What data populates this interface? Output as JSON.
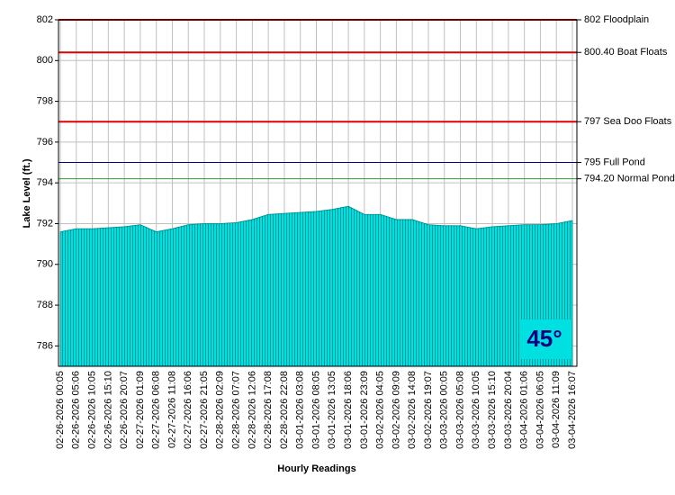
{
  "chart_data": {
    "type": "area",
    "ylabel": "Lake Level (ft.)",
    "xlabel": "Hourly Readings",
    "badge": "45°",
    "color": "#00e0e0",
    "categories": [
      "02-26-2026 00:05",
      "02-26-2026 05:06",
      "02-26-2026 10:05",
      "02-26-2026 15:10",
      "02-26-2026 20:07",
      "02-27-2026 01:09",
      "02-27-2026 06:08",
      "02-27-2026 11:08",
      "02-27-2026 16:06",
      "02-27-2026 21:05",
      "02-28-2026 02:09",
      "02-28-2026 07:07",
      "02-28-2026 12:06",
      "02-28-2026 17:08",
      "02-28-2026 22:08",
      "03-01-2026 03:08",
      "03-01-2026 08:05",
      "03-01-2026 13:05",
      "03-01-2026 18:06",
      "03-01-2026 23:09",
      "03-02-2026 04:05",
      "03-02-2026 09:09",
      "03-02-2026 14:08",
      "03-02-2026 19:07",
      "03-03-2026 00:05",
      "03-03-2026 05:08",
      "03-03-2026 10:05",
      "03-03-2026 15:10",
      "03-03-2026 20:04",
      "03-04-2026 01:06",
      "03-04-2026 06:05",
      "03-04-2026 11:09",
      "03-04-2026 16:07"
    ],
    "values": [
      791.6,
      791.75,
      791.75,
      791.8,
      791.85,
      791.95,
      791.6,
      791.75,
      791.95,
      792.0,
      792.0,
      792.05,
      792.2,
      792.45,
      792.5,
      792.55,
      792.6,
      792.7,
      792.85,
      792.45,
      792.45,
      792.2,
      792.2,
      791.95,
      791.9,
      791.9,
      791.75,
      791.85,
      791.9,
      791.95,
      791.95,
      792.0,
      792.15
    ],
    "ylim": [
      785,
      802
    ],
    "yticks": [
      786,
      788,
      790,
      792,
      794,
      796,
      798,
      800,
      802
    ],
    "grid": true,
    "reference_lines": [
      {
        "value": 802,
        "label": "802 Floodplain",
        "color": "#e00000"
      },
      {
        "value": 800.4,
        "label": "800.40 Boat Floats",
        "color": "#e00000"
      },
      {
        "value": 797,
        "label": "797 Sea Doo Floats",
        "color": "#e00000"
      },
      {
        "value": 795,
        "label": "795 Full Pond",
        "color": "#000080"
      },
      {
        "value": 794.2,
        "label": "794.20 Normal Pond",
        "color": "#339933"
      }
    ]
  }
}
